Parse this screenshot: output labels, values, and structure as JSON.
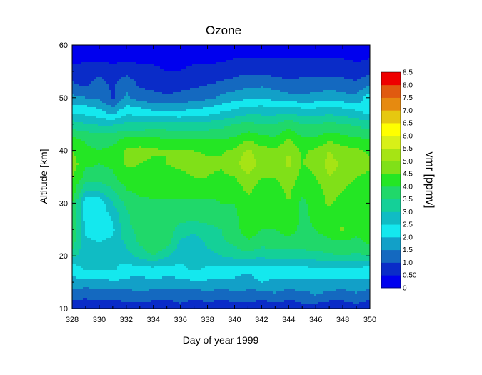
{
  "chart_data": {
    "type": "heatmap",
    "subtype": "filled-contour",
    "title": "Ozone",
    "xlabel": "Day of year 1999",
    "ylabel": "Altitude [km]",
    "xlim": [
      328,
      350
    ],
    "ylim": [
      10,
      60
    ],
    "xticks": [
      "328",
      "330",
      "332",
      "334",
      "336",
      "338",
      "340",
      "342",
      "344",
      "346",
      "348",
      "350"
    ],
    "yticks": [
      "10",
      "20",
      "30",
      "40",
      "50",
      "60"
    ],
    "x": [
      328,
      329,
      330,
      331,
      332,
      333,
      334,
      335,
      336,
      337,
      338,
      339,
      340,
      341,
      342,
      343,
      344,
      345,
      346,
      347,
      348,
      349,
      350
    ],
    "y": [
      10,
      12.5,
      15,
      17.5,
      20,
      22.5,
      25,
      27.5,
      30,
      32.5,
      35,
      37.5,
      40,
      42.5,
      45,
      47.5,
      50,
      52.5,
      55,
      57.5,
      60
    ],
    "z": [
      [
        0.6,
        0.7,
        0.5,
        0.6,
        0.8,
        0.6,
        0.7,
        0.6,
        0.8,
        0.6,
        0.7,
        0.6,
        0.7,
        0.8,
        0.6,
        0.7,
        0.6,
        0.8,
        0.7,
        0.6,
        0.7,
        0.8,
        0.6
      ],
      [
        1.2,
        1.1,
        1.3,
        1.2,
        1.2,
        1.4,
        1.2,
        1.2,
        1.3,
        1.2,
        1.3,
        1.2,
        1.3,
        1.3,
        1.2,
        1.4,
        1.2,
        1.3,
        1.5,
        1.3,
        1.2,
        1.4,
        1.2
      ],
      [
        1.9,
        1.8,
        1.8,
        1.9,
        1.9,
        1.8,
        1.9,
        1.8,
        1.8,
        1.9,
        1.9,
        1.9,
        1.9,
        1.8,
        2.0,
        1.9,
        1.9,
        1.9,
        1.8,
        1.9,
        1.9,
        1.9,
        1.9
      ],
      [
        2.1,
        2.6,
        2.5,
        2.6,
        2.2,
        2.3,
        2.3,
        2.3,
        2.4,
        2.6,
        2.4,
        2.3,
        2.2,
        2.1,
        2.3,
        2.2,
        2.2,
        2.3,
        2.4,
        2.4,
        2.3,
        2.4,
        2.2
      ],
      [
        3.2,
        2.6,
        2.6,
        2.6,
        2.8,
        3.2,
        3.5,
        3.1,
        2.6,
        2.6,
        2.8,
        3.0,
        3.2,
        3.3,
        3.1,
        3.3,
        3.2,
        3.3,
        3.3,
        3.4,
        3.5,
        3.4,
        3.5
      ],
      [
        3.8,
        2.6,
        2.5,
        2.6,
        3.1,
        3.6,
        3.9,
        3.7,
        2.9,
        2.7,
        3.1,
        3.4,
        3.6,
        3.9,
        3.7,
        3.7,
        3.8,
        3.7,
        3.8,
        3.9,
        3.9,
        3.8,
        4.1
      ],
      [
        4.1,
        2.4,
        2.3,
        2.4,
        3.4,
        3.6,
        3.7,
        3.8,
        3.3,
        3.1,
        3.3,
        3.5,
        3.8,
        4.3,
        4.0,
        4.0,
        4.2,
        3.9,
        4.0,
        4.2,
        4.6,
        4.2,
        4.3
      ],
      [
        4.0,
        2.2,
        2.1,
        2.6,
        3.4,
        3.8,
        3.8,
        3.8,
        3.7,
        3.7,
        3.8,
        3.9,
        3.9,
        4.3,
        4.2,
        4.1,
        4.3,
        3.9,
        4.1,
        4.3,
        4.1,
        4.3,
        4.1
      ],
      [
        4.1,
        2.2,
        2.1,
        3.0,
        3.6,
        3.9,
        3.9,
        3.9,
        3.9,
        3.9,
        3.9,
        4.0,
        4.0,
        4.4,
        4.1,
        4.1,
        4.5,
        3.9,
        4.2,
        4.6,
        4.3,
        4.3,
        4.2
      ],
      [
        4.4,
        3.0,
        3.1,
        3.5,
        4.0,
        4.1,
        4.2,
        4.2,
        4.2,
        4.2,
        4.2,
        4.1,
        4.2,
        4.6,
        4.3,
        4.3,
        4.6,
        4.1,
        4.3,
        4.7,
        4.5,
        4.3,
        4.3
      ],
      [
        4.6,
        3.8,
        3.8,
        3.9,
        4.3,
        4.4,
        4.4,
        4.4,
        4.4,
        4.5,
        4.5,
        4.4,
        4.5,
        4.9,
        4.5,
        4.5,
        4.9,
        4.3,
        4.5,
        5.0,
        4.8,
        4.5,
        4.4
      ],
      [
        4.8,
        4.1,
        4.0,
        4.1,
        4.6,
        4.5,
        4.4,
        4.5,
        4.6,
        4.7,
        4.6,
        4.6,
        4.8,
        5.4,
        4.8,
        4.6,
        5.1,
        4.5,
        4.7,
        5.2,
        4.9,
        4.7,
        4.6
      ],
      [
        4.5,
        4.1,
        4.0,
        4.1,
        4.6,
        4.7,
        4.6,
        4.5,
        4.5,
        4.5,
        4.4,
        4.4,
        4.6,
        5.1,
        4.7,
        4.6,
        5.0,
        4.4,
        4.6,
        5.0,
        4.7,
        4.6,
        4.4
      ],
      [
        4.0,
        3.9,
        3.8,
        3.8,
        4.0,
        4.0,
        4.0,
        3.9,
        3.9,
        3.9,
        3.9,
        3.9,
        4.0,
        4.3,
        4.1,
        4.0,
        4.4,
        4.0,
        4.0,
        4.3,
        4.1,
        4.0,
        3.9
      ],
      [
        3.2,
        3.0,
        2.9,
        2.9,
        3.1,
        3.1,
        3.2,
        3.2,
        3.1,
        3.1,
        3.2,
        3.3,
        3.5,
        3.6,
        3.5,
        3.5,
        3.8,
        3.5,
        3.5,
        3.6,
        3.5,
        3.4,
        3.2
      ],
      [
        2.4,
        2.3,
        2.1,
        1.7,
        2.3,
        2.2,
        2.0,
        2.0,
        2.0,
        2.1,
        2.2,
        2.4,
        2.6,
        2.8,
        2.8,
        2.8,
        2.9,
        2.7,
        2.7,
        2.8,
        2.7,
        2.5,
        2.3
      ],
      [
        1.6,
        1.5,
        1.4,
        0.9,
        1.6,
        1.3,
        1.2,
        1.1,
        1.2,
        1.3,
        1.4,
        1.6,
        1.8,
        1.9,
        2.0,
        1.8,
        1.7,
        1.6,
        1.7,
        1.8,
        1.7,
        1.6,
        2.3
      ],
      [
        1.1,
        0.9,
        1.3,
        0.9,
        1.4,
        0.9,
        0.8,
        0.7,
        0.8,
        0.9,
        1.0,
        1.1,
        1.2,
        1.4,
        1.4,
        1.3,
        1.1,
        1.2,
        1.2,
        1.3,
        1.2,
        1.1,
        1.5
      ],
      [
        0.6,
        0.7,
        0.8,
        0.6,
        0.8,
        0.6,
        0.6,
        0.5,
        0.5,
        0.6,
        0.6,
        0.7,
        0.8,
        0.9,
        0.9,
        0.8,
        0.8,
        0.8,
        0.8,
        0.8,
        0.8,
        0.7,
        0.8
      ],
      [
        0.4,
        0.4,
        0.4,
        0.4,
        0.4,
        0.4,
        0.4,
        0.3,
        0.4,
        0.4,
        0.4,
        0.4,
        0.5,
        0.5,
        0.5,
        0.5,
        0.5,
        0.5,
        0.5,
        0.5,
        0.5,
        0.4,
        0.5
      ],
      [
        0.2,
        0.2,
        0.2,
        0.2,
        0.2,
        0.2,
        0.2,
        0.2,
        0.2,
        0.2,
        0.2,
        0.2,
        0.2,
        0.2,
        0.2,
        0.2,
        0.2,
        0.2,
        0.2,
        0.2,
        0.2,
        0.2,
        0.2
      ]
    ],
    "colorbar": {
      "title": "vmr [ppmv]",
      "levels": [
        0,
        0.5,
        1.0,
        1.5,
        2.0,
        2.5,
        3.0,
        3.5,
        4.0,
        4.5,
        5.0,
        5.5,
        6.0,
        6.5,
        7.0,
        7.5,
        8.0,
        8.5
      ],
      "labels": [
        "0",
        "0.50",
        "1.0",
        "1.5",
        "2.0",
        "2.5",
        "3.0",
        "3.5",
        "4.0",
        "4.5",
        "5.0",
        "5.5",
        "6.0",
        "6.5",
        "7.0",
        "7.5",
        "8.0",
        "8.5"
      ],
      "colors": [
        "#0000ee",
        "#0a2cc8",
        "#1469c0",
        "#12a0c8",
        "#14e8ee",
        "#10bcc4",
        "#14d098",
        "#20d86a",
        "#24e624",
        "#80e018",
        "#a6e414",
        "#d8f018",
        "#ffff00",
        "#e6c810",
        "#e68a10",
        "#e05a10",
        "#ee0000"
      ]
    }
  }
}
